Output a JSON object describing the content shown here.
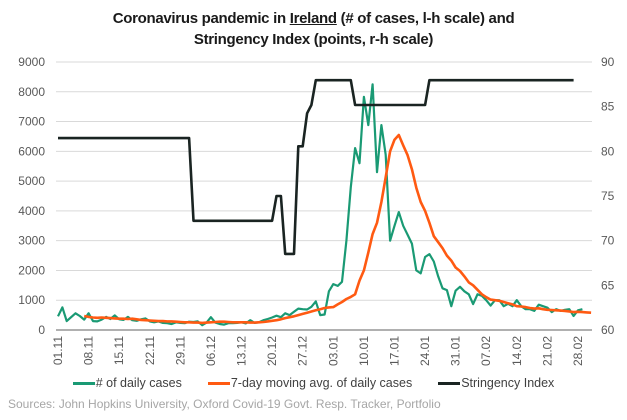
{
  "chart_data": {
    "type": "line",
    "title_parts": [
      "Coronavirus pandemic in ",
      "Ireland",
      " (# of cases, l-h scale) and",
      "Stringency Index (points, r-h scale)"
    ],
    "xlabel": "",
    "ylabel_left": "# of cases",
    "ylabel_right": "points",
    "ylim_left": [
      0,
      9000
    ],
    "ylim_right": [
      60,
      90
    ],
    "yticks_left": [
      "0",
      "1000",
      "2000",
      "3000",
      "4000",
      "5000",
      "6000",
      "7000",
      "8000",
      "9000"
    ],
    "yticks_right": [
      "60",
      "65",
      "70",
      "75",
      "80",
      "85",
      "90"
    ],
    "xticks": [
      "01.11",
      "08.11",
      "15.11",
      "22.11",
      "29.11",
      "06.12",
      "13.12",
      "20.12",
      "27.12",
      "03.01",
      "10.01",
      "17.01",
      "24.01",
      "31.01",
      "07.02",
      "14.02",
      "21.02",
      "28.02"
    ],
    "x_start": "01.11",
    "grid": true,
    "legend_position": "bottom",
    "series": [
      {
        "name": "# of daily cases",
        "color": "#1a9a74",
        "axis": "left",
        "start_day": 0,
        "values": [
          460,
          760,
          300,
          430,
          560,
          470,
          350,
          560,
          300,
          290,
          350,
          440,
          370,
          490,
          360,
          340,
          440,
          330,
          310,
          360,
          390,
          290,
          260,
          290,
          240,
          230,
          200,
          260,
          240,
          230,
          280,
          270,
          290,
          160,
          250,
          430,
          250,
          200,
          180,
          230,
          230,
          240,
          260,
          220,
          330,
          240,
          260,
          330,
          370,
          420,
          480,
          430,
          560,
          500,
          610,
          720,
          700,
          690,
          780,
          960,
          500,
          520,
          1300,
          1540,
          1480,
          1620,
          3000,
          4800,
          6110,
          5600,
          7830,
          6880,
          8250,
          5300,
          6880,
          5880,
          3000,
          3500,
          3960,
          3500,
          3200,
          2900,
          2000,
          1900,
          2450,
          2550,
          2300,
          1800,
          1400,
          1340,
          800,
          1320,
          1450,
          1300,
          1200,
          870,
          1200,
          1150,
          1000,
          820,
          1000,
          1000,
          800,
          880,
          800,
          1000,
          800,
          700,
          700,
          640,
          850,
          800,
          750,
          600,
          700,
          640,
          680,
          700,
          470,
          660,
          700
        ]
      },
      {
        "name": "7-day moving avg. of daily cases",
        "color": "#ff5a12",
        "axis": "left",
        "start_day": 6,
        "values": [
          470,
          440,
          420,
          410,
          420,
          410,
          400,
          390,
          380,
          380,
          370,
          380,
          360,
          340,
          330,
          320,
          310,
          300,
          300,
          290,
          290,
          280,
          270,
          260,
          260,
          250,
          250,
          240,
          250,
          260,
          270,
          280,
          280,
          270,
          260,
          260,
          260,
          260,
          250,
          250,
          260,
          270,
          290,
          310,
          330,
          360,
          400,
          430,
          460,
          500,
          540,
          580,
          620,
          660,
          700,
          740,
          760,
          770,
          860,
          940,
          1040,
          1110,
          1200,
          1660,
          2000,
          2600,
          3220,
          3600,
          4300,
          5130,
          6000,
          6390,
          6550,
          6200,
          5870,
          5400,
          4780,
          4300,
          4000,
          3600,
          3150,
          2950,
          2750,
          2500,
          2330,
          2100,
          1980,
          1800,
          1600,
          1500,
          1350,
          1200,
          1100,
          1020,
          1000,
          980,
          940,
          900,
          860,
          800,
          790,
          770,
          740,
          720,
          730,
          700,
          680,
          670,
          660,
          650,
          640,
          620,
          600,
          610,
          600,
          590,
          580
        ]
      },
      {
        "name": "Stringency Index",
        "color": "#1a2422",
        "axis": "right",
        "steps": [
          [
            0,
            81.48
          ],
          [
            30,
            81.48
          ],
          [
            31,
            72.22
          ],
          [
            49,
            72.22
          ],
          [
            50,
            75
          ],
          [
            51,
            75
          ],
          [
            52,
            68.52
          ],
          [
            54,
            68.52
          ],
          [
            55,
            80.56
          ],
          [
            56,
            80.56
          ],
          [
            57,
            84.26
          ],
          [
            58,
            85.19
          ],
          [
            59,
            87.96
          ],
          [
            67,
            87.96
          ],
          [
            68,
            85.19
          ],
          [
            84,
            85.19
          ],
          [
            85,
            87.96
          ],
          [
            118,
            87.96
          ]
        ]
      }
    ]
  },
  "legend": {
    "items": [
      {
        "label": "# of daily cases",
        "color": "#1a9a74"
      },
      {
        "label": "7-day moving avg. of daily cases",
        "color": "#ff5a12"
      },
      {
        "label": "Stringency Index",
        "color": "#1a2422"
      }
    ]
  },
  "source": "Sources: John Hopkins University, Oxford Covid-19 Govt. Resp. Tracker, Portfolio"
}
